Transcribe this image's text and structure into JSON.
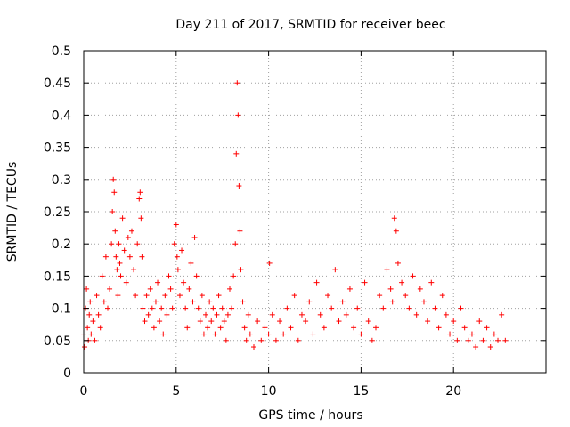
{
  "colors": {
    "points": "#ff0000",
    "axes": "#000000",
    "grid": "#a0a0a0",
    "background": "#ffffff"
  },
  "chart_data": {
    "type": "scatter",
    "title": "Day 211 of 2017, SRMTID for receiver beec",
    "xlabel": "GPS time / hours",
    "ylabel": "SRMTID / TECUs",
    "xlim": [
      0,
      25
    ],
    "ylim": [
      0,
      0.5
    ],
    "xticks": [
      0,
      5,
      10,
      15,
      20
    ],
    "yticks": [
      0,
      0.05,
      0.1,
      0.15,
      0.2,
      0.25,
      0.3,
      0.35,
      0.4,
      0.45,
      0.5
    ],
    "xtick_labels": [
      "0",
      "5",
      "10",
      "15",
      "20"
    ],
    "ytick_labels": [
      "0",
      "0.05",
      "0.1",
      "0.15",
      "0.2",
      "0.25",
      "0.3",
      "0.35",
      "0.4",
      "0.45",
      "0.5"
    ],
    "grid": true,
    "marker": "+",
    "series": [
      {
        "name": "SRMTID",
        "x": [
          0.0,
          0.05,
          0.1,
          0.15,
          0.2,
          0.25,
          0.3,
          0.35,
          0.4,
          0.5,
          0.6,
          0.7,
          0.8,
          0.9,
          1.0,
          1.1,
          1.2,
          1.3,
          1.4,
          1.5,
          1.55,
          1.6,
          1.65,
          1.7,
          1.75,
          1.8,
          1.85,
          1.9,
          1.95,
          2.0,
          2.1,
          2.2,
          2.3,
          2.4,
          2.5,
          2.6,
          2.7,
          2.8,
          2.9,
          3.0,
          3.05,
          3.1,
          3.15,
          3.2,
          3.3,
          3.4,
          3.5,
          3.6,
          3.7,
          3.8,
          3.9,
          4.0,
          4.1,
          4.2,
          4.3,
          4.4,
          4.5,
          4.6,
          4.7,
          4.8,
          4.9,
          5.0,
          5.05,
          5.1,
          5.2,
          5.3,
          5.4,
          5.5,
          5.6,
          5.7,
          5.8,
          5.9,
          6.0,
          6.1,
          6.2,
          6.3,
          6.4,
          6.5,
          6.6,
          6.7,
          6.8,
          6.9,
          7.0,
          7.1,
          7.2,
          7.3,
          7.4,
          7.5,
          7.6,
          7.7,
          7.8,
          7.9,
          8.0,
          8.1,
          8.2,
          8.25,
          8.3,
          8.35,
          8.4,
          8.45,
          8.5,
          8.6,
          8.7,
          8.8,
          8.9,
          9.0,
          9.2,
          9.4,
          9.6,
          9.8,
          10.0,
          10.05,
          10.2,
          10.4,
          10.6,
          10.8,
          11.0,
          11.2,
          11.4,
          11.6,
          11.8,
          12.0,
          12.2,
          12.4,
          12.6,
          12.8,
          13.0,
          13.2,
          13.4,
          13.6,
          13.8,
          14.0,
          14.2,
          14.4,
          14.6,
          14.8,
          15.0,
          15.2,
          15.4,
          15.6,
          15.8,
          16.0,
          16.2,
          16.4,
          16.6,
          16.7,
          16.8,
          16.9,
          17.0,
          17.2,
          17.4,
          17.6,
          17.8,
          18.0,
          18.2,
          18.4,
          18.6,
          18.8,
          19.0,
          19.2,
          19.4,
          19.6,
          19.8,
          20.0,
          20.2,
          20.4,
          20.6,
          20.8,
          21.0,
          21.2,
          21.4,
          21.6,
          21.8,
          22.0,
          22.2,
          22.4,
          22.6,
          22.8
        ],
        "y": [
          0.06,
          0.04,
          0.1,
          0.13,
          0.07,
          0.05,
          0.09,
          0.11,
          0.06,
          0.08,
          0.05,
          0.12,
          0.09,
          0.07,
          0.15,
          0.11,
          0.18,
          0.1,
          0.13,
          0.2,
          0.25,
          0.3,
          0.28,
          0.22,
          0.18,
          0.16,
          0.12,
          0.2,
          0.17,
          0.15,
          0.24,
          0.19,
          0.14,
          0.21,
          0.18,
          0.22,
          0.16,
          0.12,
          0.2,
          0.27,
          0.28,
          0.24,
          0.18,
          0.1,
          0.08,
          0.12,
          0.09,
          0.13,
          0.1,
          0.07,
          0.11,
          0.14,
          0.08,
          0.1,
          0.06,
          0.12,
          0.09,
          0.15,
          0.13,
          0.1,
          0.2,
          0.23,
          0.18,
          0.16,
          0.12,
          0.19,
          0.14,
          0.1,
          0.07,
          0.13,
          0.17,
          0.11,
          0.21,
          0.15,
          0.1,
          0.08,
          0.12,
          0.06,
          0.09,
          0.07,
          0.11,
          0.08,
          0.1,
          0.06,
          0.09,
          0.12,
          0.07,
          0.1,
          0.08,
          0.05,
          0.09,
          0.13,
          0.1,
          0.15,
          0.2,
          0.34,
          0.45,
          0.4,
          0.29,
          0.22,
          0.16,
          0.11,
          0.07,
          0.05,
          0.09,
          0.06,
          0.04,
          0.08,
          0.05,
          0.07,
          0.06,
          0.17,
          0.09,
          0.05,
          0.08,
          0.06,
          0.1,
          0.07,
          0.12,
          0.05,
          0.09,
          0.08,
          0.11,
          0.06,
          0.14,
          0.09,
          0.07,
          0.12,
          0.1,
          0.16,
          0.08,
          0.11,
          0.09,
          0.13,
          0.07,
          0.1,
          0.06,
          0.14,
          0.08,
          0.05,
          0.07,
          0.12,
          0.1,
          0.16,
          0.13,
          0.11,
          0.24,
          0.22,
          0.17,
          0.14,
          0.12,
          0.1,
          0.15,
          0.09,
          0.13,
          0.11,
          0.08,
          0.14,
          0.1,
          0.07,
          0.12,
          0.09,
          0.06,
          0.08,
          0.05,
          0.1,
          0.07,
          0.05,
          0.06,
          0.04,
          0.08,
          0.05,
          0.07,
          0.04,
          0.06,
          0.05,
          0.09,
          0.05
        ]
      }
    ]
  }
}
